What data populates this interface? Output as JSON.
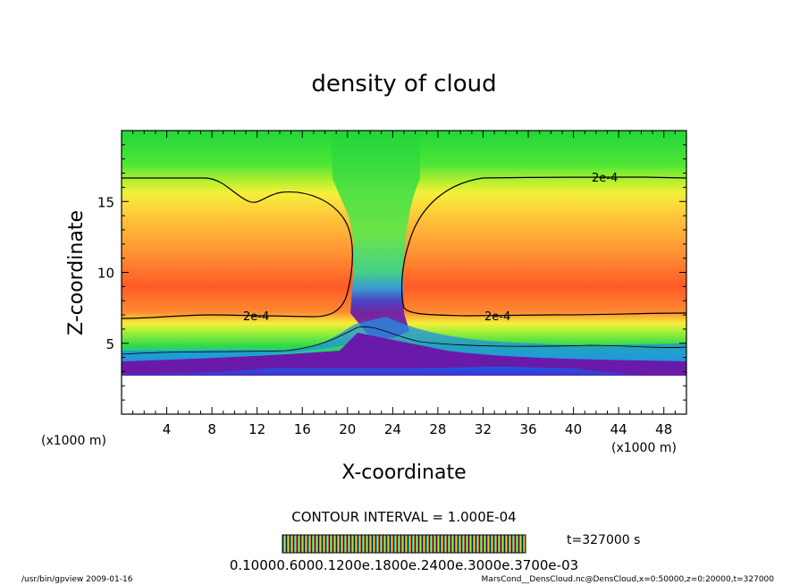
{
  "chart_data": {
    "type": "heatmap",
    "title": "density of cloud",
    "xlabel": "X-coordinate",
    "ylabel": "Z-coordinate",
    "x_unit": "(x1000 m)",
    "y_unit": "(x1000 m)",
    "xlim": [
      0,
      50
    ],
    "ylim": [
      0,
      20
    ],
    "x_ticks": [
      "4",
      "8",
      "12",
      "16",
      "20",
      "24",
      "28",
      "32",
      "36",
      "40",
      "44",
      "48"
    ],
    "y_ticks": [
      "5",
      "10",
      "15"
    ],
    "x_tick_values": [
      4,
      8,
      12,
      16,
      20,
      24,
      28,
      32,
      36,
      40,
      44,
      48
    ],
    "y_tick_values": [
      5,
      10,
      15
    ],
    "colorbar_min": 0.0001,
    "colorbar_max": 0.0007,
    "colorbar_labels": "0.1000e-3 0.600e-4 0.1200e-3 0.1800e-3 0.2400e-3 0.3000e-3 0.3700e-03",
    "colorbar_label_text": "0.10000.6000.1200e.1800e.2400e.3000e.3700e-03",
    "contour_interval_text": "CONTOUR INTERVAL = 1.000E-04",
    "contour_level_label": "2e-4",
    "contour_level_value": 0.0002,
    "time_text": "t=327000 s",
    "footer_left": "/usr/bin/gpview  2009-01-16",
    "footer_right": "MarsCond__DensCloud.nc@DensCloud,x=0:50000,z=0:20000,t=327000",
    "regions": [
      {
        "name": "left cloud core",
        "x_range": [
          0,
          20.5
        ],
        "z_range": [
          6.8,
          16.6
        ],
        "level": "high"
      },
      {
        "name": "right cloud core",
        "x_range": [
          25,
          50
        ],
        "z_range": [
          6.8,
          16.6
        ],
        "level": "high"
      },
      {
        "name": "central clear column",
        "x_range": [
          20.5,
          25
        ],
        "z_range": [
          7,
          20
        ],
        "level": "low"
      },
      {
        "name": "lower ragged layer",
        "x_range": [
          0,
          50
        ],
        "z_range": [
          2.5,
          5
        ],
        "level": "low-with-purple-base"
      }
    ],
    "grid": false
  }
}
